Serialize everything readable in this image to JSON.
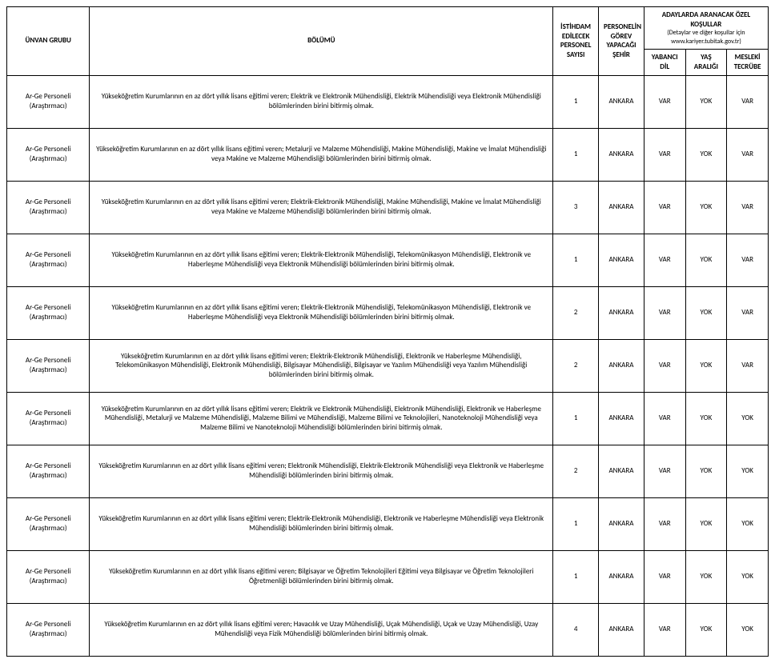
{
  "header": {
    "unvan": "ÜNVAN GRUBU",
    "bolum": "BÖLÜMÜ",
    "sayi": "İSTİHDAM EDİLECEK PERSONEL SAYISI",
    "sehir": "PERSONELİN GÖREV YAPACAĞI ŞEHİR",
    "kosul_top": "ADAYLARDA ARANACAK ÖZEL KOŞULLAR",
    "kosul_note": "(Detaylar ve diğer koşullar için www.kariyer.tubitak.gov.tr)",
    "dil": "YABANCI DİL",
    "yas": "YAŞ ARALIĞI",
    "tecrube": "MESLEKİ TECRÜBE"
  },
  "rows": [
    {
      "unvan": "Ar-Ge Personeli (Araştırmacı)",
      "bolum": "Yükseköğretim Kurumlarının en az dört yıllık lisans eğitimi veren; Elektrik ve Elektronik Mühendisliği, Elektrik Mühendisliği veya Elektronik Mühendisliği bölümlerinden birini bitirmiş olmak.",
      "sayi": "1",
      "sehir": "ANKARA",
      "dil": "VAR",
      "yas": "YOK",
      "tecrube": "VAR"
    },
    {
      "unvan": "Ar-Ge Personeli (Araştırmacı)",
      "bolum": "Yükseköğretim Kurumlarının en az dört yıllık lisans eğitimi veren; Metalurji ve Malzeme Mühendisliği, Makine Mühendisliği, Makine ve İmalat Mühendisliği veya Makine ve Malzeme Mühendisliği bölümlerinden birini bitirmiş olmak.",
      "sayi": "1",
      "sehir": "ANKARA",
      "dil": "VAR",
      "yas": "YOK",
      "tecrube": "VAR"
    },
    {
      "unvan": "Ar-Ge Personeli (Araştırmacı)",
      "bolum": "Yükseköğretim Kurumlarının en az dört yıllık lisans eğitimi veren; Elektrik-Elektronik Mühendisliği, Makine Mühendisliği, Makine ve İmalat Mühendisliği veya Makine ve Malzeme Mühendisliği bölümlerinden birini bitirmiş olmak.",
      "sayi": "3",
      "sehir": "ANKARA",
      "dil": "VAR",
      "yas": "YOK",
      "tecrube": "VAR"
    },
    {
      "unvan": "Ar-Ge Personeli (Araştırmacı)",
      "bolum": "Yükseköğretim Kurumlarının en az dört yıllık lisans eğitimi veren; Elektrik-Elektronik Mühendisliği, Telekomünikasyon Mühendisliği, Elektronik ve Haberleşme Mühendisliği veya Elektronik Mühendisliği bölümlerinden birini bitirmiş olmak.",
      "sayi": "1",
      "sehir": "ANKARA",
      "dil": "VAR",
      "yas": "YOK",
      "tecrube": "VAR"
    },
    {
      "unvan": "Ar-Ge Personeli (Araştırmacı)",
      "bolum": "Yükseköğretim Kurumlarının en az dört yıllık lisans eğitimi veren; Elektrik-Elektronik Mühendisliği, Telekomünikasyon Mühendisliği, Elektronik ve Haberleşme Mühendisliği veya Elektronik Mühendisliği bölümlerinden birini bitirmiş olmak.",
      "sayi": "2",
      "sehir": "ANKARA",
      "dil": "VAR",
      "yas": "YOK",
      "tecrube": "VAR"
    },
    {
      "unvan": "Ar-Ge Personeli (Araştırmacı)",
      "bolum": "Yükseköğretim Kurumlarının en az dört yıllık lisans eğitimi veren; Elektrik-Elektronik Mühendisliği, Elektronik ve Haberleşme Mühendisliği, Telekomünikasyon Mühendisliği, Elektronik Mühendisliği, Bilgisayar Mühendisliği, Bilgisayar ve Yazılım Mühendisliği veya Yazılım Mühendisliği bölümlerinden birini bitirmiş olmak.",
      "sayi": "2",
      "sehir": "ANKARA",
      "dil": "VAR",
      "yas": "YOK",
      "tecrube": "VAR"
    },
    {
      "unvan": "Ar-Ge Personeli (Araştırmacı)",
      "bolum": "Yükseköğretim Kurumlarının en az dört yıllık lisans eğitimi veren; Elektrik ve Elektronik Mühendisliği, Elektronik Mühendisliği, Elektronik ve Haberleşme Mühendisliği, Metalurji ve Malzeme Mühendisliği, Malzeme Bilimi ve Mühendisliği, Malzeme Bilimi ve Teknolojileri, Nanoteknoloji Mühendisliği veya Malzeme Bilimi ve Nanoteknoloji Mühendisliği bölümlerinden birini bitirmiş olmak.",
      "sayi": "1",
      "sehir": "ANKARA",
      "dil": "VAR",
      "yas": "YOK",
      "tecrube": "YOK"
    },
    {
      "unvan": "Ar-Ge Personeli (Araştırmacı)",
      "bolum": "Yükseköğretim Kurumlarının en az dört yıllık lisans eğitimi veren; Elektronik Mühendisliği, Elektrik-Elektronik Mühendisliği veya Elektronik ve Haberleşme Mühendisliği bölümlerinden birini bitirmiş olmak.",
      "sayi": "2",
      "sehir": "ANKARA",
      "dil": "VAR",
      "yas": "YOK",
      "tecrube": "YOK"
    },
    {
      "unvan": "Ar-Ge Personeli (Araştırmacı)",
      "bolum": "Yükseköğretim Kurumlarının en az dört yıllık lisans eğitimi veren; Elektrik-Elektronik Mühendisliği, Elektronik ve Haberleşme Mühendisliği veya Elektronik Mühendisliği bölümlerinden birini bitirmiş olmak.",
      "sayi": "1",
      "sehir": "ANKARA",
      "dil": "VAR",
      "yas": "YOK",
      "tecrube": "YOK"
    },
    {
      "unvan": "Ar-Ge Personeli (Araştırmacı)",
      "bolum": "Yükseköğretim Kurumlarının en az dört yıllık lisans eğitimi veren; Bilgisayar ve Öğretim Teknolojileri Eğitimi veya Bilgisayar ve Öğretim Teknolojileri Öğretmenliği bölümlerinden birini bitirmiş olmak.",
      "sayi": "1",
      "sehir": "ANKARA",
      "dil": "VAR",
      "yas": "YOK",
      "tecrube": "YOK"
    },
    {
      "unvan": "Ar-Ge Personeli (Araştırmacı)",
      "bolum": "Yükseköğretim Kurumlarının en az dört yıllık lisans eğitimi veren; Havacılık ve Uzay Mühendisliği, Uçak Mühendisliği, Uçak ve Uzay Mühendisliği, Uzay Mühendisliği veya Fizik Mühendisliği bölümlerinden birini bitirmiş olmak.",
      "sayi": "4",
      "sehir": "ANKARA",
      "dil": "VAR",
      "yas": "YOK",
      "tecrube": "YOK"
    }
  ]
}
